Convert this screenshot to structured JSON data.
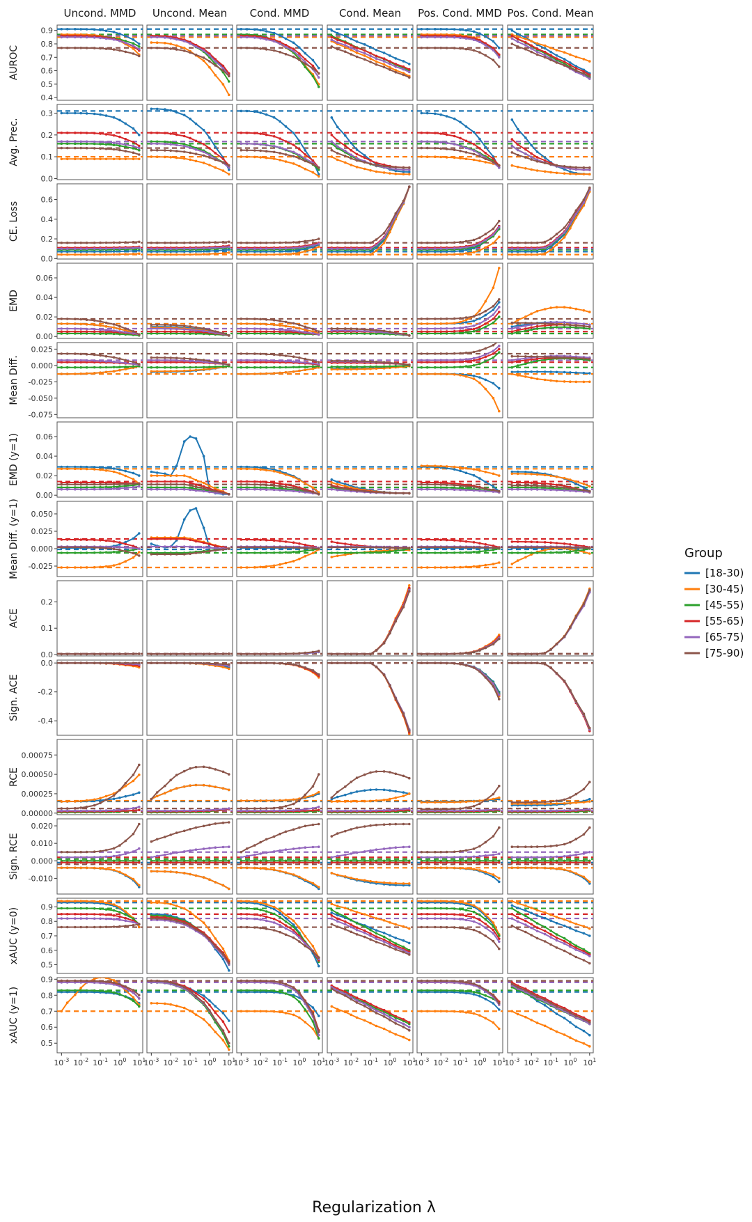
{
  "chart_data": {
    "type": "line",
    "xlabel": "Regularization λ",
    "xscale": "log",
    "x_tick_labels": [
      "10-3",
      "10-2",
      "10-1",
      "100",
      "101"
    ],
    "x": [
      0.001,
      0.002,
      0.005,
      0.01,
      0.02,
      0.05,
      0.1,
      0.2,
      0.5,
      1,
      2,
      5,
      10
    ],
    "columns": [
      "Uncond. MMD",
      "Uncond. Mean",
      "Cond. MMD",
      "Cond. Mean",
      "Pos. Cond. MMD",
      "Pos. Cond. Mean"
    ],
    "legend": {
      "title": "Group",
      "placement": "right",
      "entries": [
        "[18-30)",
        "[30-45)",
        "[45-55)",
        "[55-65)",
        "[65-75)",
        "[75-90)"
      ],
      "colors": [
        "#1f77b4",
        "#ff7f0e",
        "#2ca02c",
        "#d62728",
        "#9467bd",
        "#8c564b"
      ]
    },
    "rows": [
      {
        "name": "AUROC",
        "ylim": [
          0.38,
          0.94
        ],
        "ticks": [
          0.4,
          0.5,
          0.6,
          0.7,
          0.8,
          0.9
        ],
        "tick_labels": [
          "0.4",
          "0.5",
          "0.6",
          "0.7",
          "0.8",
          "0.9"
        ],
        "baselines": [
          0.91,
          0.85,
          0.87,
          0.86,
          0.86,
          0.77
        ]
      },
      {
        "name": "Avg. Prec.",
        "ylim": [
          -0.005,
          0.34
        ],
        "ticks": [
          0,
          0.1,
          0.2,
          0.3
        ],
        "tick_labels": [
          "0.0",
          "0.1",
          "0.2",
          "0.3"
        ],
        "baselines": [
          0.31,
          0.1,
          0.16,
          0.21,
          0.17,
          0.14
        ]
      },
      {
        "name": "CE. Loss",
        "ylim": [
          -0.005,
          0.76
        ],
        "ticks": [
          0,
          0.2,
          0.4,
          0.6
        ],
        "tick_labels": [
          "0.0",
          "0.2",
          "0.4",
          "0.6"
        ],
        "baselines": [
          0.07,
          0.04,
          0.09,
          0.11,
          0.1,
          0.16
        ]
      },
      {
        "name": "EMD",
        "ylim": [
          -0.002,
          0.075
        ],
        "ticks": [
          0,
          0.02,
          0.04,
          0.06
        ],
        "tick_labels": [
          "0.00",
          "0.02",
          "0.04",
          "0.06"
        ],
        "baselines": [
          0.013,
          0.013,
          0.003,
          0.005,
          0.008,
          0.018
        ]
      },
      {
        "name": "Mean Diff.",
        "ylim": [
          -0.08,
          0.035
        ],
        "ticks": [
          -0.075,
          -0.05,
          -0.025,
          0,
          0.025
        ],
        "tick_labels": [
          "-0.075",
          "-0.050",
          "-0.025",
          "0.000",
          "0.025"
        ],
        "baselines": [
          -0.013,
          -0.013,
          -0.003,
          0.005,
          0.008,
          0.018
        ]
      },
      {
        "name": "EMD (y=1)",
        "ylim": [
          -0.002,
          0.075
        ],
        "ticks": [
          0,
          0.02,
          0.04,
          0.06
        ],
        "tick_labels": [
          "0.00",
          "0.02",
          "0.04",
          "0.06"
        ],
        "baselines": [
          0.029,
          0.027,
          0.008,
          0.014,
          0.006,
          0.011
        ]
      },
      {
        "name": "Mean Diff. (y=1)",
        "ylim": [
          -0.04,
          0.068
        ],
        "ticks": [
          -0.025,
          0,
          0.025,
          0.05
        ],
        "tick_labels": [
          "-0.025",
          "0.000",
          "0.025",
          "0.050"
        ],
        "baselines": [
          -0.001,
          -0.027,
          -0.006,
          0.014,
          0.003,
          0.002
        ]
      },
      {
        "name": "ACE",
        "ylim": [
          -0.005,
          0.28
        ],
        "ticks": [
          0,
          0.1,
          0.2
        ],
        "tick_labels": [
          "0.0",
          "0.1",
          "0.2"
        ],
        "baselines": [
          0.003,
          0.003,
          0.003,
          0.003,
          0.003,
          0.003
        ]
      },
      {
        "name": "Sign. ACE",
        "ylim": [
          -0.5,
          0.02
        ],
        "ticks": [
          -0.4,
          -0.2,
          0
        ],
        "tick_labels": [
          "-0.4",
          "-0.2",
          "0.0"
        ],
        "baselines": [
          0.0,
          0.0,
          0.0,
          0.0,
          0.0,
          0.0
        ]
      },
      {
        "name": "RCE",
        "ylim": [
          -2e-05,
          0.00095
        ],
        "ticks": [
          0,
          0.00025,
          0.0005,
          0.00075
        ],
        "tick_labels": [
          "0.00000",
          "0.00025",
          "0.00050",
          "0.00075"
        ],
        "baselines": [
          0.00015,
          0.00016,
          1e-05,
          2e-05,
          3e-05,
          6e-05
        ]
      },
      {
        "name": "Sign. RCE",
        "ylim": [
          -0.019,
          0.024
        ],
        "ticks": [
          -0.01,
          0,
          0.01,
          0.02
        ],
        "tick_labels": [
          "-0.010",
          "0.000",
          "0.010",
          "0.020"
        ],
        "baselines": [
          -0.001,
          -0.004,
          0.001,
          0.002,
          0.005,
          -0.002
        ]
      },
      {
        "name": "xAUC (y=0)",
        "ylim": [
          0.44,
          0.96
        ],
        "ticks": [
          0.5,
          0.6,
          0.7,
          0.8,
          0.9
        ],
        "tick_labels": [
          "0.5",
          "0.6",
          "0.7",
          "0.8",
          "0.9"
        ],
        "baselines": [
          0.93,
          0.94,
          0.89,
          0.85,
          0.82,
          0.76
        ]
      },
      {
        "name": "xAUC (y=1)",
        "ylim": [
          0.44,
          0.91
        ],
        "ticks": [
          0.5,
          0.6,
          0.7,
          0.8,
          0.9
        ],
        "tick_labels": [
          "0.5",
          "0.6",
          "0.7",
          "0.8",
          "0.9"
        ],
        "baselines": [
          0.82,
          0.7,
          0.83,
          0.89,
          0.88,
          0.89
        ]
      }
    ]
  }
}
